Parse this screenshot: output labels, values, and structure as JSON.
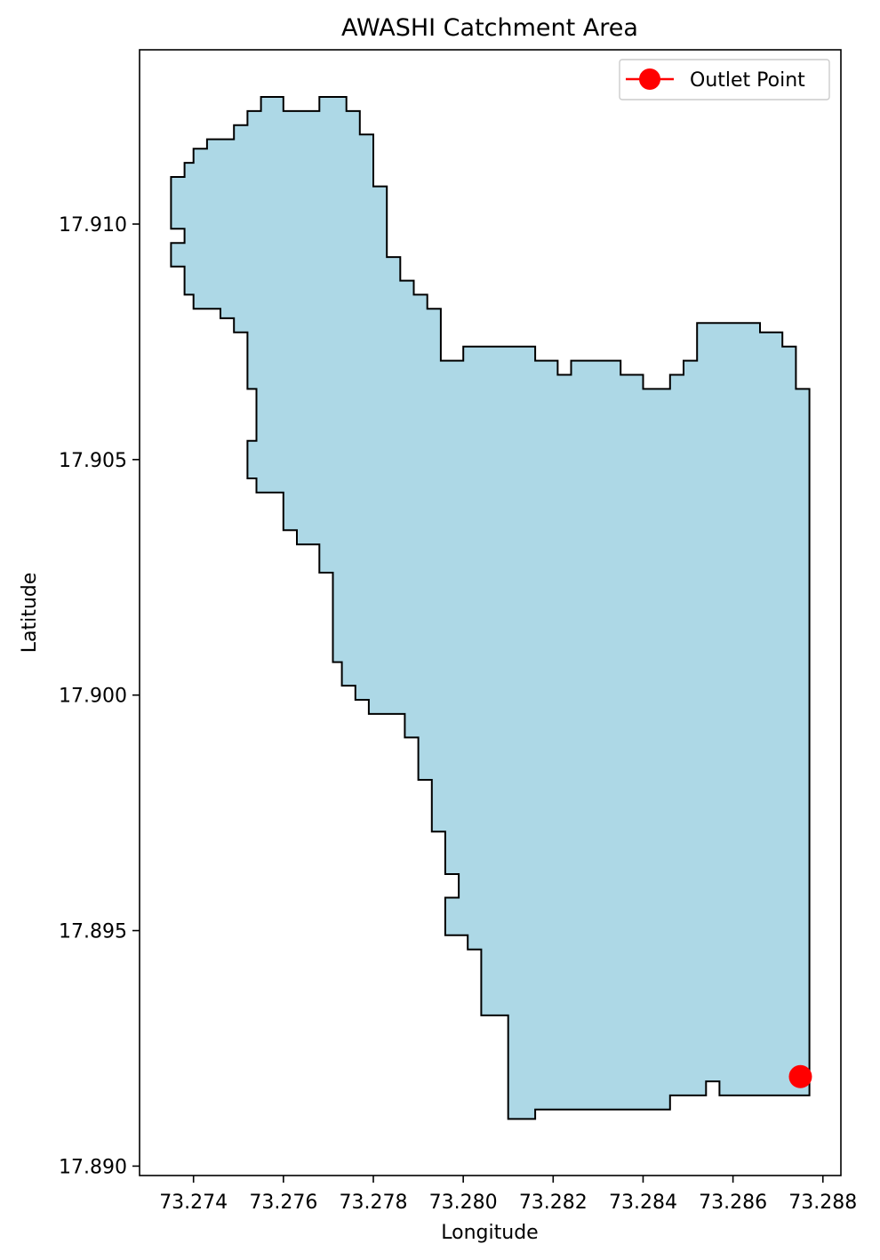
{
  "chart_data": {
    "type": "map",
    "title": "AWASHI Catchment Area",
    "xlabel": "Longitude",
    "ylabel": "Latitude",
    "xlim": [
      73.2728,
      73.2884
    ],
    "ylim": [
      17.8898,
      17.9137
    ],
    "xticks": [
      73.274,
      73.276,
      73.278,
      73.28,
      73.282,
      73.284,
      73.286,
      73.288
    ],
    "xtick_labels": [
      "73.274",
      "73.276",
      "73.278",
      "73.280",
      "73.282",
      "73.284",
      "73.286",
      "73.288"
    ],
    "yticks": [
      17.89,
      17.895,
      17.9,
      17.905,
      17.91
    ],
    "ytick_labels": [
      "17.890",
      "17.895",
      "17.900",
      "17.905",
      "17.910"
    ],
    "catchment": {
      "fill": "#add8e6",
      "edge": "#000000",
      "boundary": [
        [
          73.2755,
          17.9127
        ],
        [
          73.276,
          17.9127
        ],
        [
          73.276,
          17.9124
        ],
        [
          73.2768,
          17.9124
        ],
        [
          73.2768,
          17.9127
        ],
        [
          73.2774,
          17.9127
        ],
        [
          73.2774,
          17.9124
        ],
        [
          73.2777,
          17.9124
        ],
        [
          73.2777,
          17.9119
        ],
        [
          73.278,
          17.9119
        ],
        [
          73.278,
          17.9108
        ],
        [
          73.2783,
          17.9108
        ],
        [
          73.2783,
          17.9093
        ],
        [
          73.2786,
          17.9093
        ],
        [
          73.2786,
          17.9088
        ],
        [
          73.2789,
          17.9088
        ],
        [
          73.2789,
          17.9085
        ],
        [
          73.2792,
          17.9085
        ],
        [
          73.2792,
          17.9082
        ],
        [
          73.2795,
          17.9082
        ],
        [
          73.2795,
          17.9071
        ],
        [
          73.28,
          17.9071
        ],
        [
          73.28,
          17.9074
        ],
        [
          73.2816,
          17.9074
        ],
        [
          73.2816,
          17.9071
        ],
        [
          73.2821,
          17.9071
        ],
        [
          73.2821,
          17.9068
        ],
        [
          73.2824,
          17.9068
        ],
        [
          73.2824,
          17.9071
        ],
        [
          73.2835,
          17.9071
        ],
        [
          73.2835,
          17.9068
        ],
        [
          73.284,
          17.9068
        ],
        [
          73.284,
          17.9065
        ],
        [
          73.2846,
          17.9065
        ],
        [
          73.2846,
          17.9068
        ],
        [
          73.2849,
          17.9068
        ],
        [
          73.2849,
          17.9071
        ],
        [
          73.2852,
          17.9071
        ],
        [
          73.2852,
          17.9079
        ],
        [
          73.2866,
          17.9079
        ],
        [
          73.2866,
          17.9077
        ],
        [
          73.2871,
          17.9077
        ],
        [
          73.2871,
          17.9074
        ],
        [
          73.2874,
          17.9074
        ],
        [
          73.2874,
          17.9065
        ],
        [
          73.2877,
          17.9065
        ],
        [
          73.2877,
          17.8915
        ],
        [
          73.286,
          17.8915
        ],
        [
          73.2857,
          17.8915
        ],
        [
          73.2857,
          17.8918
        ],
        [
          73.2854,
          17.8918
        ],
        [
          73.2854,
          17.8915
        ],
        [
          73.2846,
          17.8915
        ],
        [
          73.2846,
          17.8912
        ],
        [
          73.2816,
          17.8912
        ],
        [
          73.2816,
          17.891
        ],
        [
          73.281,
          17.891
        ],
        [
          73.281,
          17.8932
        ],
        [
          73.2804,
          17.8932
        ],
        [
          73.2804,
          17.8946
        ],
        [
          73.2801,
          17.8946
        ],
        [
          73.2801,
          17.8949
        ],
        [
          73.2796,
          17.8949
        ],
        [
          73.2796,
          17.8957
        ],
        [
          73.2799,
          17.8957
        ],
        [
          73.2799,
          17.8962
        ],
        [
          73.2796,
          17.8962
        ],
        [
          73.2796,
          17.8971
        ],
        [
          73.2793,
          17.8971
        ],
        [
          73.2793,
          17.8982
        ],
        [
          73.279,
          17.8982
        ],
        [
          73.279,
          17.8991
        ],
        [
          73.2787,
          17.8991
        ],
        [
          73.2787,
          17.8996
        ],
        [
          73.2779,
          17.8996
        ],
        [
          73.2779,
          17.8999
        ],
        [
          73.2776,
          17.8999
        ],
        [
          73.2776,
          17.9002
        ],
        [
          73.2773,
          17.9002
        ],
        [
          73.2773,
          17.9007
        ],
        [
          73.2771,
          17.9007
        ],
        [
          73.2771,
          17.9026
        ],
        [
          73.2768,
          17.9026
        ],
        [
          73.2768,
          17.9032
        ],
        [
          73.2763,
          17.9032
        ],
        [
          73.2763,
          17.9035
        ],
        [
          73.276,
          17.9035
        ],
        [
          73.276,
          17.9043
        ],
        [
          73.2754,
          17.9043
        ],
        [
          73.2754,
          17.9046
        ],
        [
          73.2752,
          17.9046
        ],
        [
          73.2752,
          17.9054
        ],
        [
          73.2754,
          17.9054
        ],
        [
          73.2754,
          17.9065
        ],
        [
          73.2752,
          17.9065
        ],
        [
          73.2752,
          17.9077
        ],
        [
          73.2749,
          17.9077
        ],
        [
          73.2749,
          17.908
        ],
        [
          73.2746,
          17.908
        ],
        [
          73.2746,
          17.9082
        ],
        [
          73.274,
          17.9082
        ],
        [
          73.274,
          17.9085
        ],
        [
          73.2738,
          17.9085
        ],
        [
          73.2738,
          17.9091
        ],
        [
          73.2735,
          17.9091
        ],
        [
          73.2735,
          17.9096
        ],
        [
          73.2738,
          17.9096
        ],
        [
          73.2738,
          17.9099
        ],
        [
          73.2735,
          17.9099
        ],
        [
          73.2735,
          17.911
        ],
        [
          73.2738,
          17.911
        ],
        [
          73.2738,
          17.9113
        ],
        [
          73.274,
          17.9113
        ],
        [
          73.274,
          17.9116
        ],
        [
          73.2743,
          17.9116
        ],
        [
          73.2743,
          17.9118
        ],
        [
          73.2749,
          17.9118
        ],
        [
          73.2749,
          17.9121
        ],
        [
          73.2752,
          17.9121
        ],
        [
          73.2752,
          17.9124
        ],
        [
          73.2755,
          17.9124
        ],
        [
          73.2755,
          17.9127
        ]
      ]
    },
    "outlet": {
      "name": "Outlet Point",
      "lon": 73.2875,
      "lat": 17.8919,
      "color": "#ff0000"
    },
    "legend": {
      "location": "upper-right",
      "entries": [
        "Outlet Point"
      ]
    }
  }
}
